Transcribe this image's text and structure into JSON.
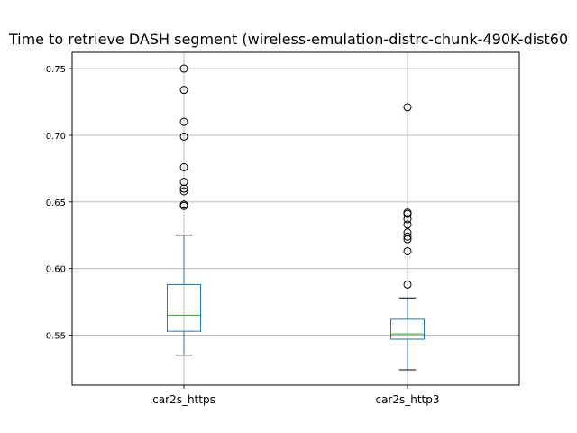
{
  "chart_data": {
    "type": "box",
    "title": "Time to retrieve DASH segment (wireless-emulation-distrc-chunk-490K-dist60",
    "xlabel": "",
    "ylabel": "",
    "ylim": [
      0.5125,
      0.7622
    ],
    "yticks": [
      0.55,
      0.6,
      0.65,
      0.7,
      0.75
    ],
    "ytick_labels": [
      "0.55",
      "0.60",
      "0.65",
      "0.70",
      "0.75"
    ],
    "grid": true,
    "colors": {
      "box": "#1f77b4",
      "median": "#2ca02c",
      "whisker": "#1f77b4",
      "cap": "#000000",
      "flier": "#000000",
      "grid": "#b0b0b0"
    },
    "series": [
      {
        "name": "car2s_https",
        "whislo": 0.535,
        "q1": 0.553,
        "median": 0.565,
        "q3": 0.588,
        "whishi": 0.625,
        "fliers": [
          0.75,
          0.734,
          0.71,
          0.699,
          0.676,
          0.665,
          0.66,
          0.658,
          0.648,
          0.647
        ]
      },
      {
        "name": "car2s_http3",
        "whislo": 0.524,
        "q1": 0.547,
        "median": 0.551,
        "q3": 0.562,
        "whishi": 0.578,
        "fliers": [
          0.721,
          0.642,
          0.641,
          0.637,
          0.633,
          0.627,
          0.624,
          0.622,
          0.613,
          0.588
        ]
      }
    ]
  }
}
